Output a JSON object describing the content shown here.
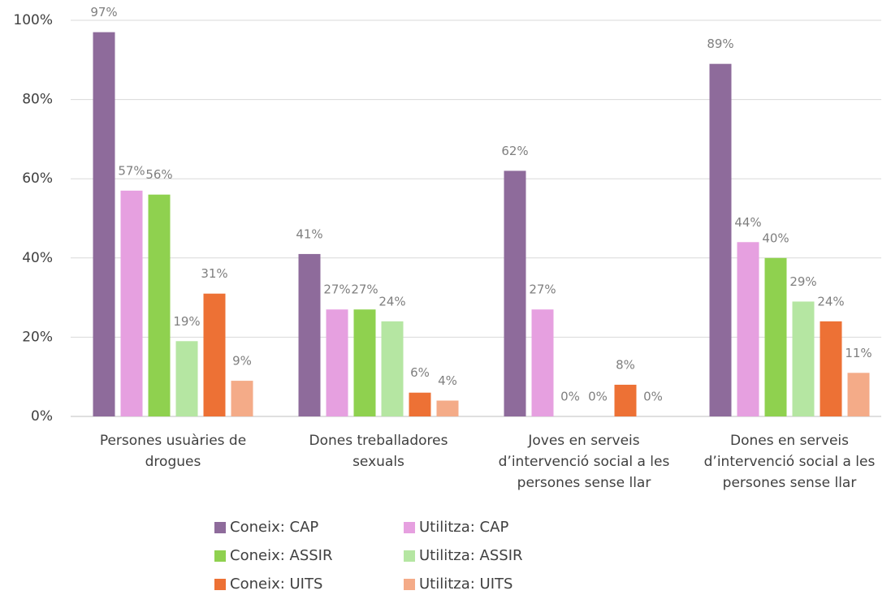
{
  "chart_data": {
    "type": "bar",
    "categories": [
      "Persones usuàries de drogues",
      "Dones treballadores sexuals",
      "Joves en serveis d’intervenció social a les persones sense llar",
      "Dones en serveis d’intervenció social a les persones sense llar"
    ],
    "series": [
      {
        "name": "Coneix: CAP",
        "color": "#8e6b9b",
        "values": [
          97,
          41,
          62,
          89
        ],
        "value_labels": [
          "97%",
          "41%",
          "62%",
          "89%"
        ]
      },
      {
        "name": "Utilitza: CAP",
        "color": "#e6a0e0",
        "values": [
          57,
          27,
          27,
          44
        ],
        "value_labels": [
          "57%",
          "27%",
          "27%",
          "44%"
        ]
      },
      {
        "name": "Coneix: ASSIR",
        "color": "#8fd14f",
        "values": [
          56,
          27,
          0,
          40
        ],
        "value_labels": [
          "56%",
          "27%",
          "0%",
          "40%"
        ]
      },
      {
        "name": "Utilitza: ASSIR",
        "color": "#b5e6a2",
        "values": [
          19,
          24,
          0,
          29
        ],
        "value_labels": [
          "19%",
          "24%",
          "0%",
          "29%"
        ]
      },
      {
        "name": "Coneix: UITS",
        "color": "#ed7135",
        "values": [
          31,
          6,
          8,
          24
        ],
        "value_labels": [
          "31%",
          "6%",
          "8%",
          "24%"
        ]
      },
      {
        "name": "Utilitza: UITS",
        "color": "#f4ab88",
        "values": [
          9,
          4,
          0,
          11
        ],
        "value_labels": [
          "9%",
          "4%",
          "0%",
          "11%"
        ]
      }
    ],
    "ylim": [
      0,
      100
    ],
    "yticks": [
      {
        "value": 0,
        "label": "0%"
      },
      {
        "value": 20,
        "label": "20%"
      },
      {
        "value": 40,
        "label": "40%"
      },
      {
        "value": 60,
        "label": "60%"
      },
      {
        "value": 80,
        "label": "80%"
      },
      {
        "value": 100,
        "label": "100%"
      }
    ],
    "grid": true,
    "legend": "bottom"
  }
}
